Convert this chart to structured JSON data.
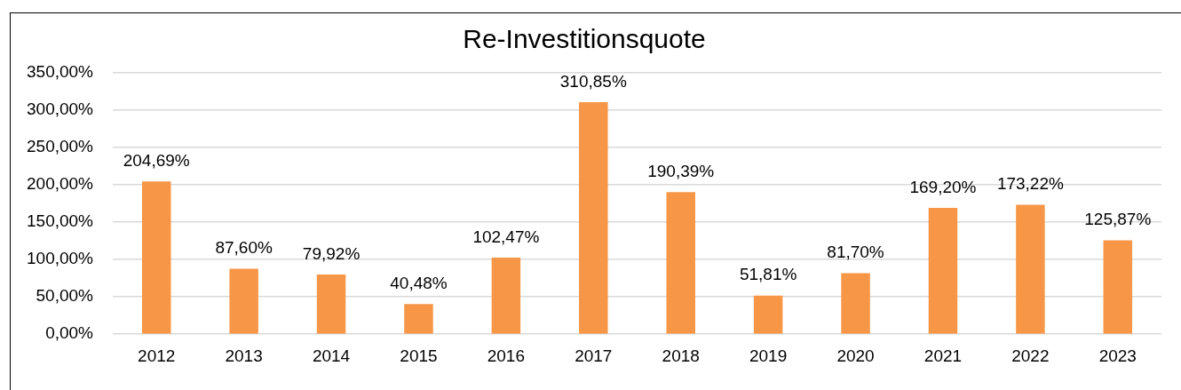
{
  "chart_data": {
    "type": "bar",
    "title": "Re-Investitionsquote",
    "categories": [
      "2012",
      "2013",
      "2014",
      "2015",
      "2016",
      "2017",
      "2018",
      "2019",
      "2020",
      "2021",
      "2022",
      "2023"
    ],
    "values": [
      204.69,
      87.6,
      79.92,
      40.48,
      102.47,
      310.85,
      190.39,
      51.81,
      81.7,
      169.2,
      173.22,
      125.87
    ],
    "value_labels": [
      "204,69%",
      "87,60%",
      "79,92%",
      "40,48%",
      "102,47%",
      "310,85%",
      "190,39%",
      "51,81%",
      "81,70%",
      "169,20%",
      "173,22%",
      "125,87%"
    ],
    "color": "#f79646",
    "ylim": [
      0,
      350
    ],
    "yticks": [
      {
        "value": 0,
        "label": "0,00%"
      },
      {
        "value": 50,
        "label": "50,00%"
      },
      {
        "value": 100,
        "label": "100,00%"
      },
      {
        "value": 150,
        "label": "150,00%"
      },
      {
        "value": 200,
        "label": "200,00%"
      },
      {
        "value": 250,
        "label": "250,00%"
      },
      {
        "value": 300,
        "label": "300,00%"
      },
      {
        "value": 350,
        "label": "350,00%"
      }
    ],
    "grid": "y",
    "legend": false
  }
}
